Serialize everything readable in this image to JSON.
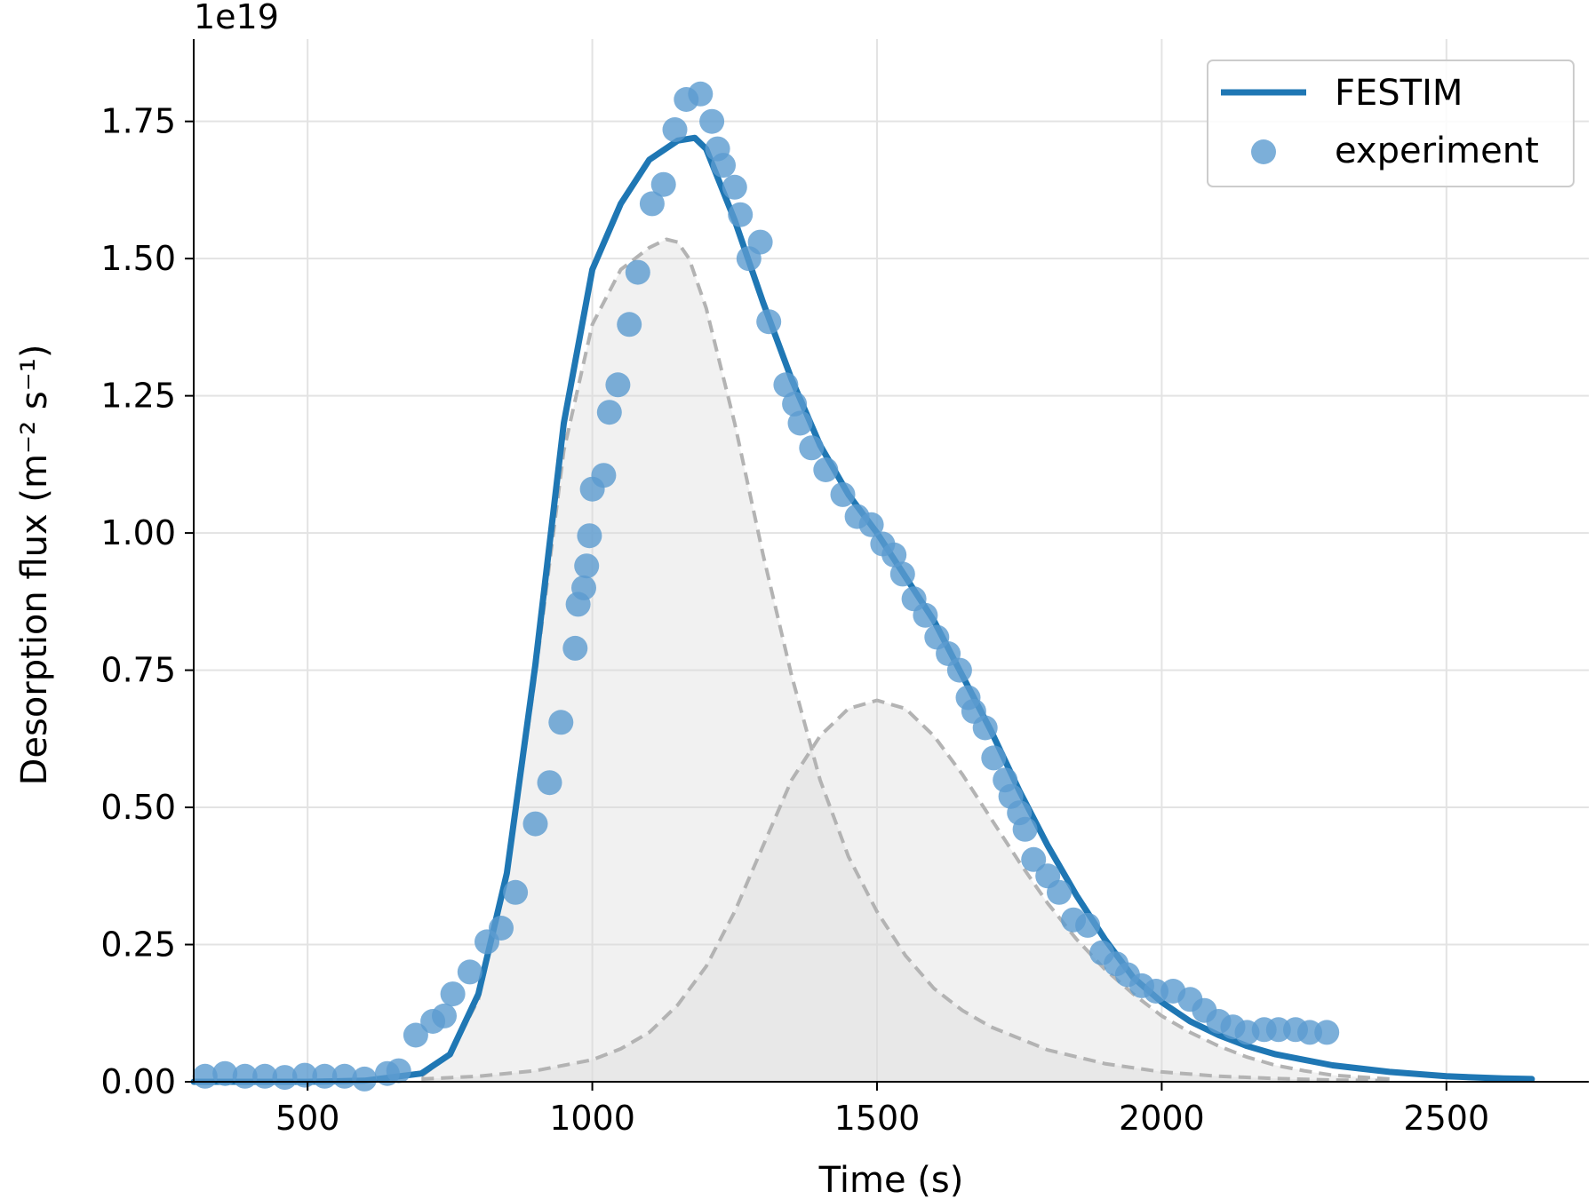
{
  "chart_data": {
    "type": "line",
    "title": "",
    "xlabel": "Time (s)",
    "ylabel": "Desorption flux (m⁻² s⁻¹)",
    "y_offset_label": "1e19",
    "y_scale_factor": 1e+19,
    "xlim": [
      300,
      2750
    ],
    "ylim": [
      0,
      1.9
    ],
    "x_ticks": [
      500,
      1000,
      1500,
      2000,
      2500
    ],
    "x_tick_labels": [
      "500",
      "1000",
      "1500",
      "2000",
      "2500"
    ],
    "y_ticks": [
      0.0,
      0.25,
      0.5,
      0.75,
      1.0,
      1.25,
      1.5,
      1.75
    ],
    "y_tick_labels": [
      "0.00",
      "0.25",
      "0.50",
      "0.75",
      "1.00",
      "1.25",
      "1.50",
      "1.75"
    ],
    "grid": true,
    "legend_position": "top-right",
    "colors": {
      "festim": "#1f77b4",
      "experiment": "#5b9bd0",
      "components_line": "#b3b3b3",
      "components_fill": "#d9d9d9",
      "grid": "#e3e3e3"
    },
    "series": [
      {
        "name": "FESTIM",
        "kind": "line",
        "x": [
          300,
          500,
          600,
          700,
          750,
          800,
          850,
          900,
          950,
          1000,
          1050,
          1100,
          1150,
          1180,
          1200,
          1250,
          1300,
          1350,
          1400,
          1450,
          1500,
          1550,
          1600,
          1650,
          1700,
          1750,
          1800,
          1850,
          1900,
          1950,
          2000,
          2050,
          2100,
          2150,
          2200,
          2300,
          2400,
          2500,
          2600,
          2650
        ],
        "y": [
          0.0,
          0.0,
          0.002,
          0.015,
          0.05,
          0.16,
          0.38,
          0.76,
          1.2,
          1.48,
          1.6,
          1.68,
          1.715,
          1.72,
          1.7,
          1.57,
          1.42,
          1.28,
          1.16,
          1.07,
          1.0,
          0.92,
          0.84,
          0.74,
          0.64,
          0.53,
          0.43,
          0.34,
          0.26,
          0.19,
          0.145,
          0.11,
          0.085,
          0.065,
          0.05,
          0.03,
          0.018,
          0.01,
          0.006,
          0.005
        ]
      },
      {
        "name": "experiment",
        "kind": "scatter",
        "x": [
          320,
          355,
          390,
          425,
          460,
          495,
          530,
          565,
          600,
          640,
          660,
          690,
          720,
          740,
          755,
          785,
          815,
          840,
          865,
          900,
          925,
          945,
          970,
          975,
          985,
          990,
          995,
          1000,
          1020,
          1030,
          1045,
          1065,
          1080,
          1105,
          1125,
          1145,
          1165,
          1190,
          1210,
          1220,
          1230,
          1250,
          1260,
          1275,
          1295,
          1310,
          1340,
          1355,
          1365,
          1385,
          1410,
          1440,
          1465,
          1490,
          1510,
          1530,
          1545,
          1565,
          1585,
          1605,
          1625,
          1645,
          1660,
          1670,
          1690,
          1705,
          1725,
          1735,
          1750,
          1760,
          1775,
          1800,
          1820,
          1845,
          1870,
          1895,
          1920,
          1940,
          1965,
          1990,
          2020,
          2050,
          2075,
          2100,
          2125,
          2150,
          2180,
          2205,
          2235,
          2260,
          2290
        ],
        "y": [
          0.01,
          0.015,
          0.01,
          0.01,
          0.008,
          0.012,
          0.01,
          0.01,
          0.005,
          0.015,
          0.02,
          0.085,
          0.11,
          0.12,
          0.16,
          0.2,
          0.255,
          0.28,
          0.345,
          0.47,
          0.545,
          0.655,
          0.79,
          0.87,
          0.9,
          0.94,
          0.995,
          1.08,
          1.105,
          1.22,
          1.27,
          1.38,
          1.475,
          1.6,
          1.635,
          1.735,
          1.79,
          1.8,
          1.75,
          1.7,
          1.67,
          1.63,
          1.58,
          1.5,
          1.53,
          1.385,
          1.27,
          1.235,
          1.2,
          1.155,
          1.115,
          1.07,
          1.03,
          1.015,
          0.98,
          0.96,
          0.925,
          0.88,
          0.85,
          0.81,
          0.78,
          0.75,
          0.7,
          0.675,
          0.645,
          0.59,
          0.55,
          0.52,
          0.49,
          0.46,
          0.405,
          0.375,
          0.345,
          0.295,
          0.285,
          0.235,
          0.215,
          0.195,
          0.175,
          0.165,
          0.165,
          0.15,
          0.13,
          0.11,
          0.1,
          0.09,
          0.095,
          0.095,
          0.095,
          0.09,
          0.09
        ]
      },
      {
        "name": "",
        "kind": "component",
        "style": "dashed-filled",
        "x": [
          700,
          750,
          800,
          850,
          900,
          950,
          1000,
          1050,
          1100,
          1130,
          1150,
          1170,
          1200,
          1250,
          1300,
          1350,
          1400,
          1450,
          1500,
          1550,
          1600,
          1650,
          1700,
          1800,
          1900,
          2000,
          2100,
          2200,
          2300,
          2400
        ],
        "y": [
          0.01,
          0.05,
          0.15,
          0.37,
          0.74,
          1.15,
          1.38,
          1.48,
          1.52,
          1.535,
          1.53,
          1.5,
          1.41,
          1.2,
          0.96,
          0.74,
          0.55,
          0.41,
          0.31,
          0.23,
          0.17,
          0.13,
          0.1,
          0.058,
          0.033,
          0.018,
          0.01,
          0.006,
          0.003,
          0.002
        ]
      },
      {
        "name": "",
        "kind": "component",
        "style": "dashed-filled",
        "x": [
          700,
          800,
          900,
          1000,
          1050,
          1100,
          1150,
          1200,
          1250,
          1300,
          1350,
          1400,
          1450,
          1500,
          1550,
          1600,
          1650,
          1700,
          1750,
          1800,
          1850,
          1900,
          1950,
          2000,
          2050,
          2100,
          2150,
          2200,
          2250,
          2300,
          2400
        ],
        "y": [
          0.005,
          0.01,
          0.02,
          0.04,
          0.06,
          0.09,
          0.14,
          0.21,
          0.31,
          0.43,
          0.55,
          0.63,
          0.68,
          0.695,
          0.68,
          0.63,
          0.56,
          0.48,
          0.4,
          0.325,
          0.26,
          0.205,
          0.16,
          0.12,
          0.09,
          0.065,
          0.045,
          0.03,
          0.02,
          0.012,
          0.005
        ]
      }
    ]
  }
}
